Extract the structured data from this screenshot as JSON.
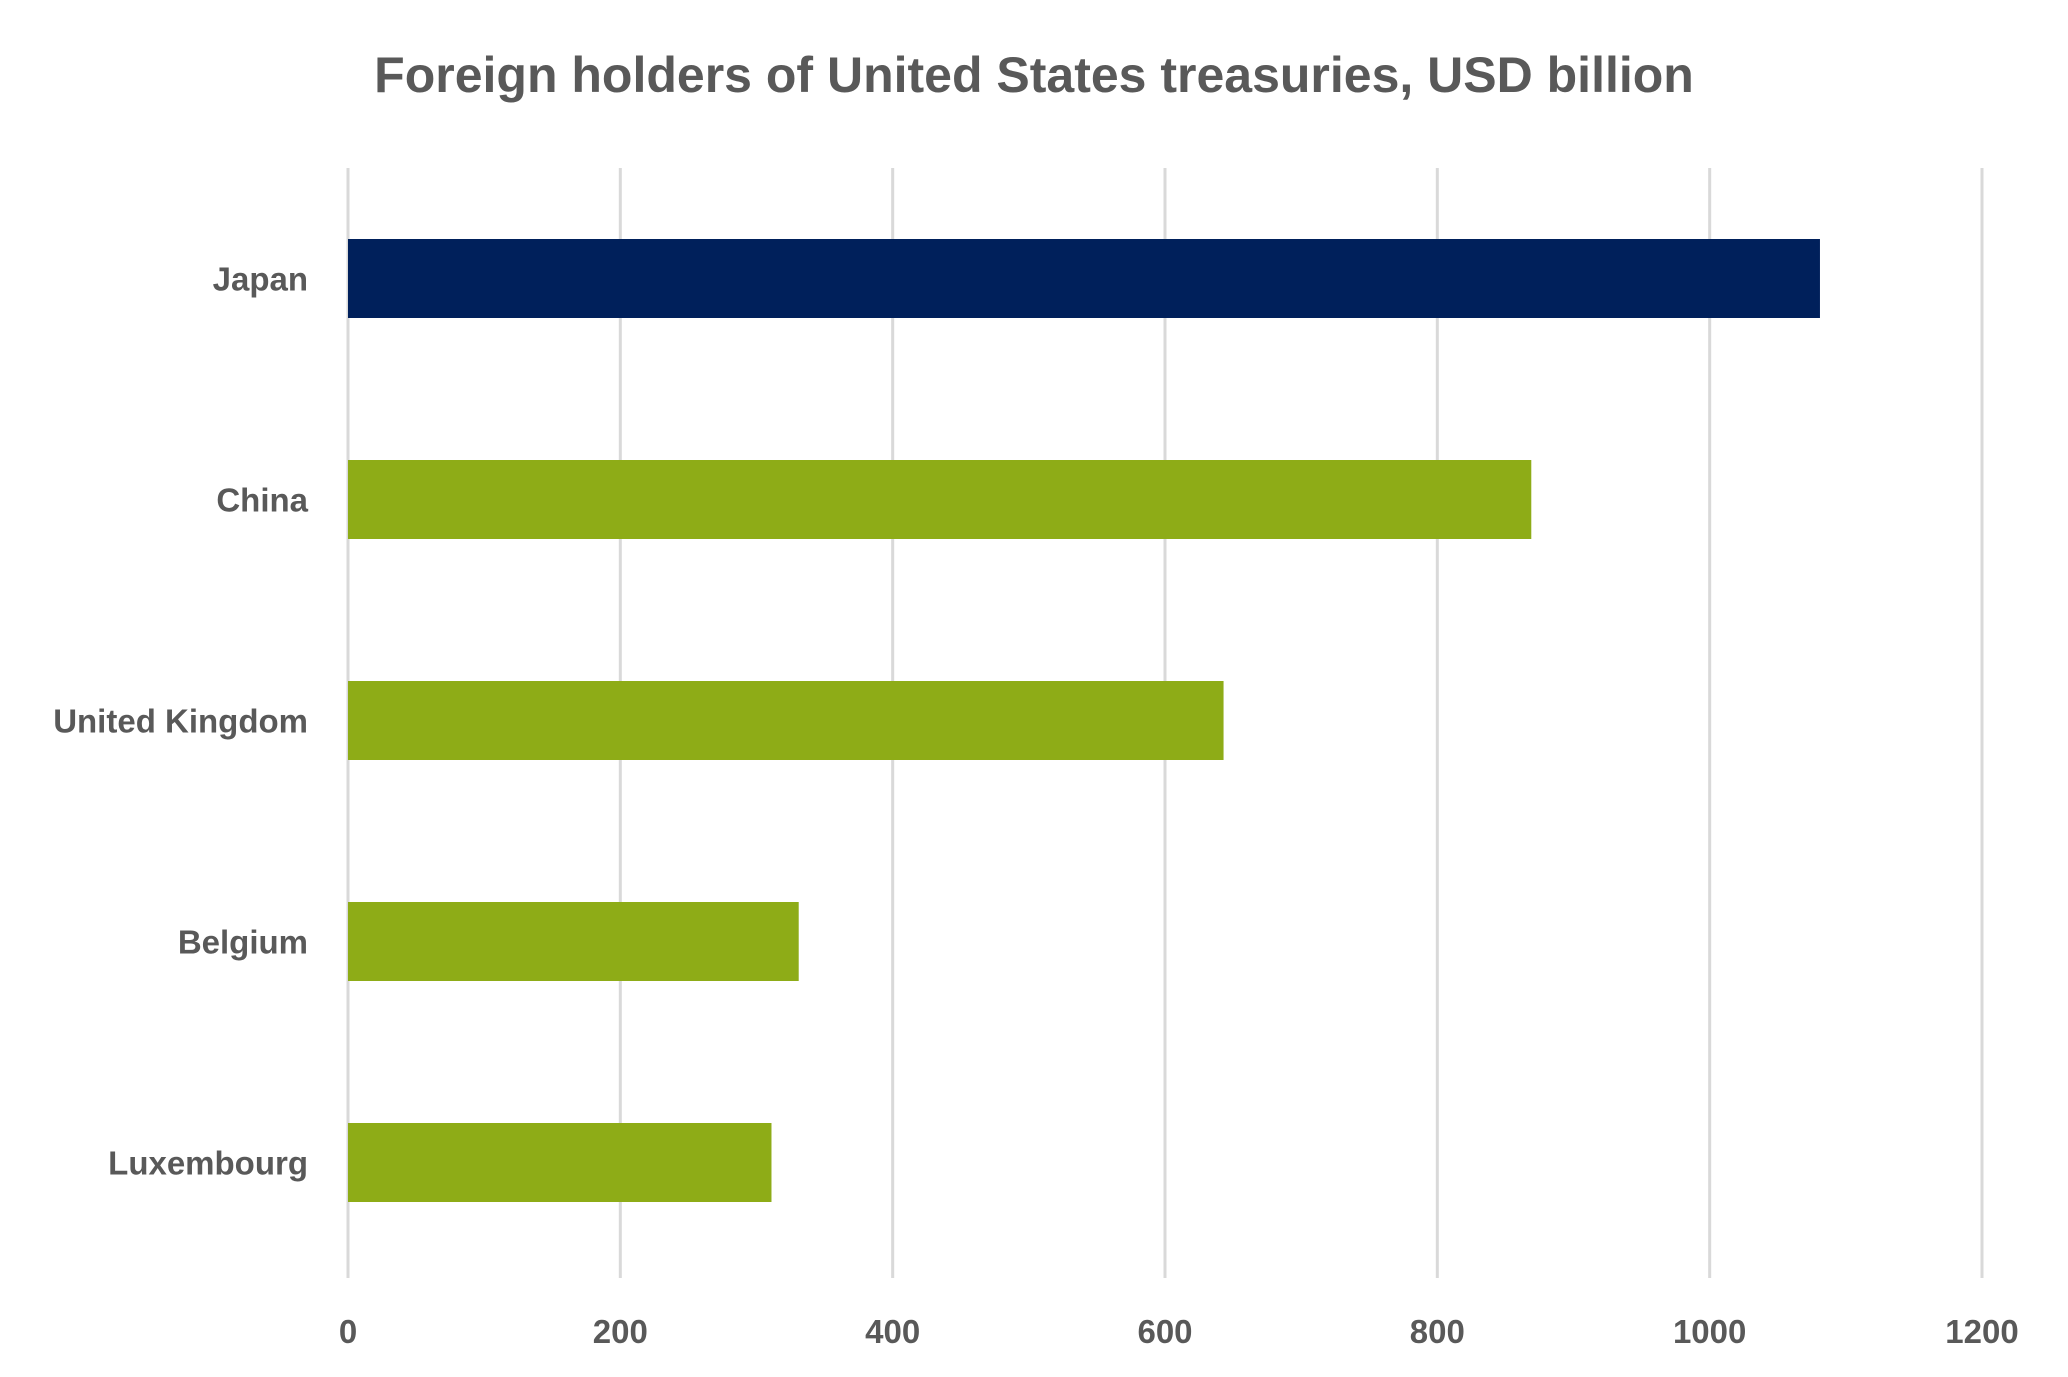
{
  "chart_data": {
    "type": "bar",
    "orientation": "horizontal",
    "title": "Foreign holders of United States treasuries, USD billion",
    "xlabel": "",
    "ylabel": "",
    "categories": [
      "Japan",
      "China",
      "United Kingdom",
      "Belgium",
      "Luxembourg"
    ],
    "values": [
      1081,
      869,
      643,
      331,
      311
    ],
    "bar_colors": [
      "#00205B",
      "#8EAC17",
      "#8EAC17",
      "#8EAC17",
      "#8EAC17"
    ],
    "xlim": [
      0,
      1200
    ],
    "ticks": [
      "0",
      "200",
      "400",
      "600",
      "800",
      "1000",
      "1200"
    ],
    "tick_values": [
      0,
      200,
      400,
      600,
      800,
      1000,
      1200
    ],
    "grid": true,
    "legend": "none"
  },
  "colors": {
    "highlight": "#00205B",
    "bar": "#8EAC17",
    "grid": "#D9D9D9",
    "text": "#595959"
  }
}
